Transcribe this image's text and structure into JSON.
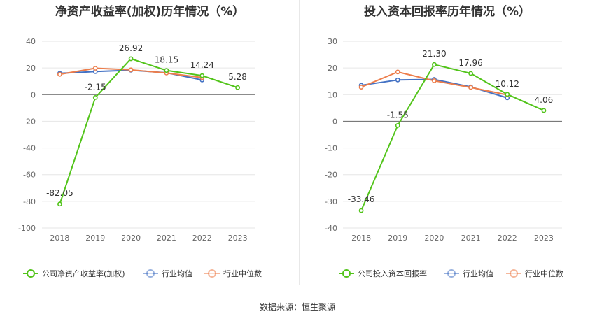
{
  "chart_data": [
    {
      "type": "line",
      "title": "净资产收益率(加权)历年情况（%）",
      "categories": [
        "2018",
        "2019",
        "2020",
        "2021",
        "2022",
        "2023"
      ],
      "ylim": [
        -100,
        40
      ],
      "yticks": [
        40,
        20,
        0,
        -20,
        -40,
        -60,
        -80,
        -100
      ],
      "series": [
        {
          "name": "公司净资产收益率(加权)",
          "color": "#52c41a",
          "values": [
            -82.05,
            -2.15,
            26.92,
            18.15,
            14.24,
            5.28
          ],
          "labels": [
            "-82.05",
            "-2.15",
            "26.92",
            "18.15",
            "14.24",
            "5.28"
          ]
        },
        {
          "name": "行业均值",
          "color": "#4472c4",
          "values": [
            16.0,
            17.3,
            18.3,
            16.4,
            11.0,
            null
          ]
        },
        {
          "name": "行业中位数",
          "color": "#ed7d4b",
          "values": [
            15.2,
            19.8,
            18.6,
            16.2,
            12.8,
            null
          ]
        }
      ]
    },
    {
      "type": "line",
      "title": "投入资本回报率历年情况（%）",
      "categories": [
        "2018",
        "2019",
        "2020",
        "2021",
        "2022",
        "2023"
      ],
      "ylim": [
        -40,
        30
      ],
      "yticks": [
        30,
        20,
        10,
        0,
        -10,
        -20,
        -30,
        -40
      ],
      "series": [
        {
          "name": "公司投入资本回报率",
          "color": "#52c41a",
          "values": [
            -33.46,
            -1.55,
            21.3,
            17.96,
            10.12,
            4.06
          ],
          "labels": [
            "-33.46",
            "-1.55",
            "21.30",
            "17.96",
            "10.12",
            "4.06"
          ]
        },
        {
          "name": "行业均值",
          "color": "#4472c4",
          "values": [
            13.5,
            15.5,
            15.7,
            12.9,
            8.8,
            null
          ]
        },
        {
          "name": "行业中位数",
          "color": "#ed7d4b",
          "values": [
            12.8,
            18.5,
            15.2,
            12.7,
            9.9,
            null
          ]
        }
      ]
    }
  ],
  "source": {
    "label": "数据来源：",
    "value": "恒生聚源"
  }
}
